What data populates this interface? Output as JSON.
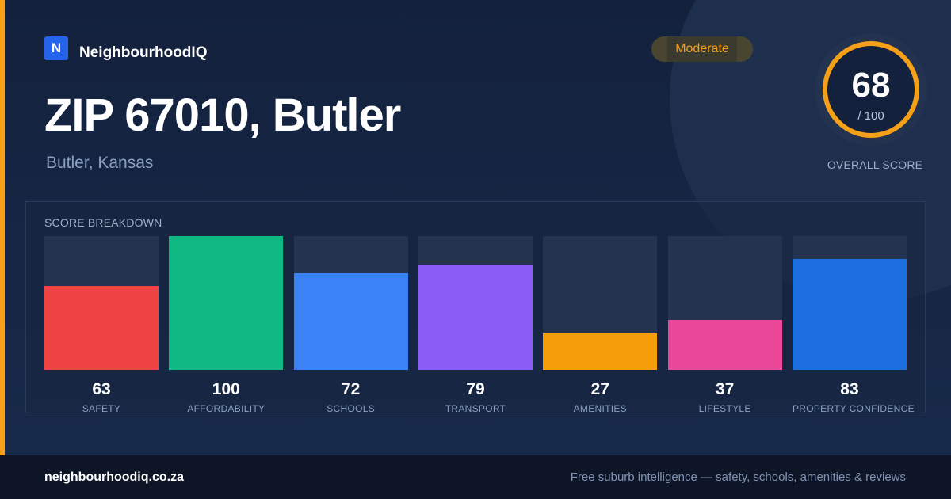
{
  "brand": {
    "logo_letter": "N",
    "name": "NeighbourhoodIQ"
  },
  "badge": {
    "label": "Moderate"
  },
  "location": {
    "title": "ZIP 67010, Butler",
    "subtitle": "Butler, Kansas"
  },
  "overall": {
    "value": "68",
    "max": "/ 100",
    "label": "OVERALL SCORE"
  },
  "colors": {
    "accent": "#f5a017",
    "background": "#13213d"
  },
  "chart_data": {
    "type": "bar",
    "title": "SCORE BREAKDOWN",
    "ylim": [
      0,
      100
    ],
    "categories": [
      "SAFETY",
      "AFFORDABILITY",
      "SCHOOLS",
      "TRANSPORT",
      "AMENITIES",
      "LIFESTYLE",
      "PROPERTY CONFIDENCE"
    ],
    "values": [
      63,
      100,
      72,
      79,
      27,
      37,
      83
    ],
    "colors": [
      "#ef4444",
      "#10b981",
      "#3b82f6",
      "#8b5cf6",
      "#f59e0b",
      "#ec4899",
      "#1d6fe0"
    ]
  },
  "footer": {
    "url": "neighbourhoodiq.co.za",
    "tagline": "Free suburb intelligence — safety, schools, amenities & reviews"
  }
}
